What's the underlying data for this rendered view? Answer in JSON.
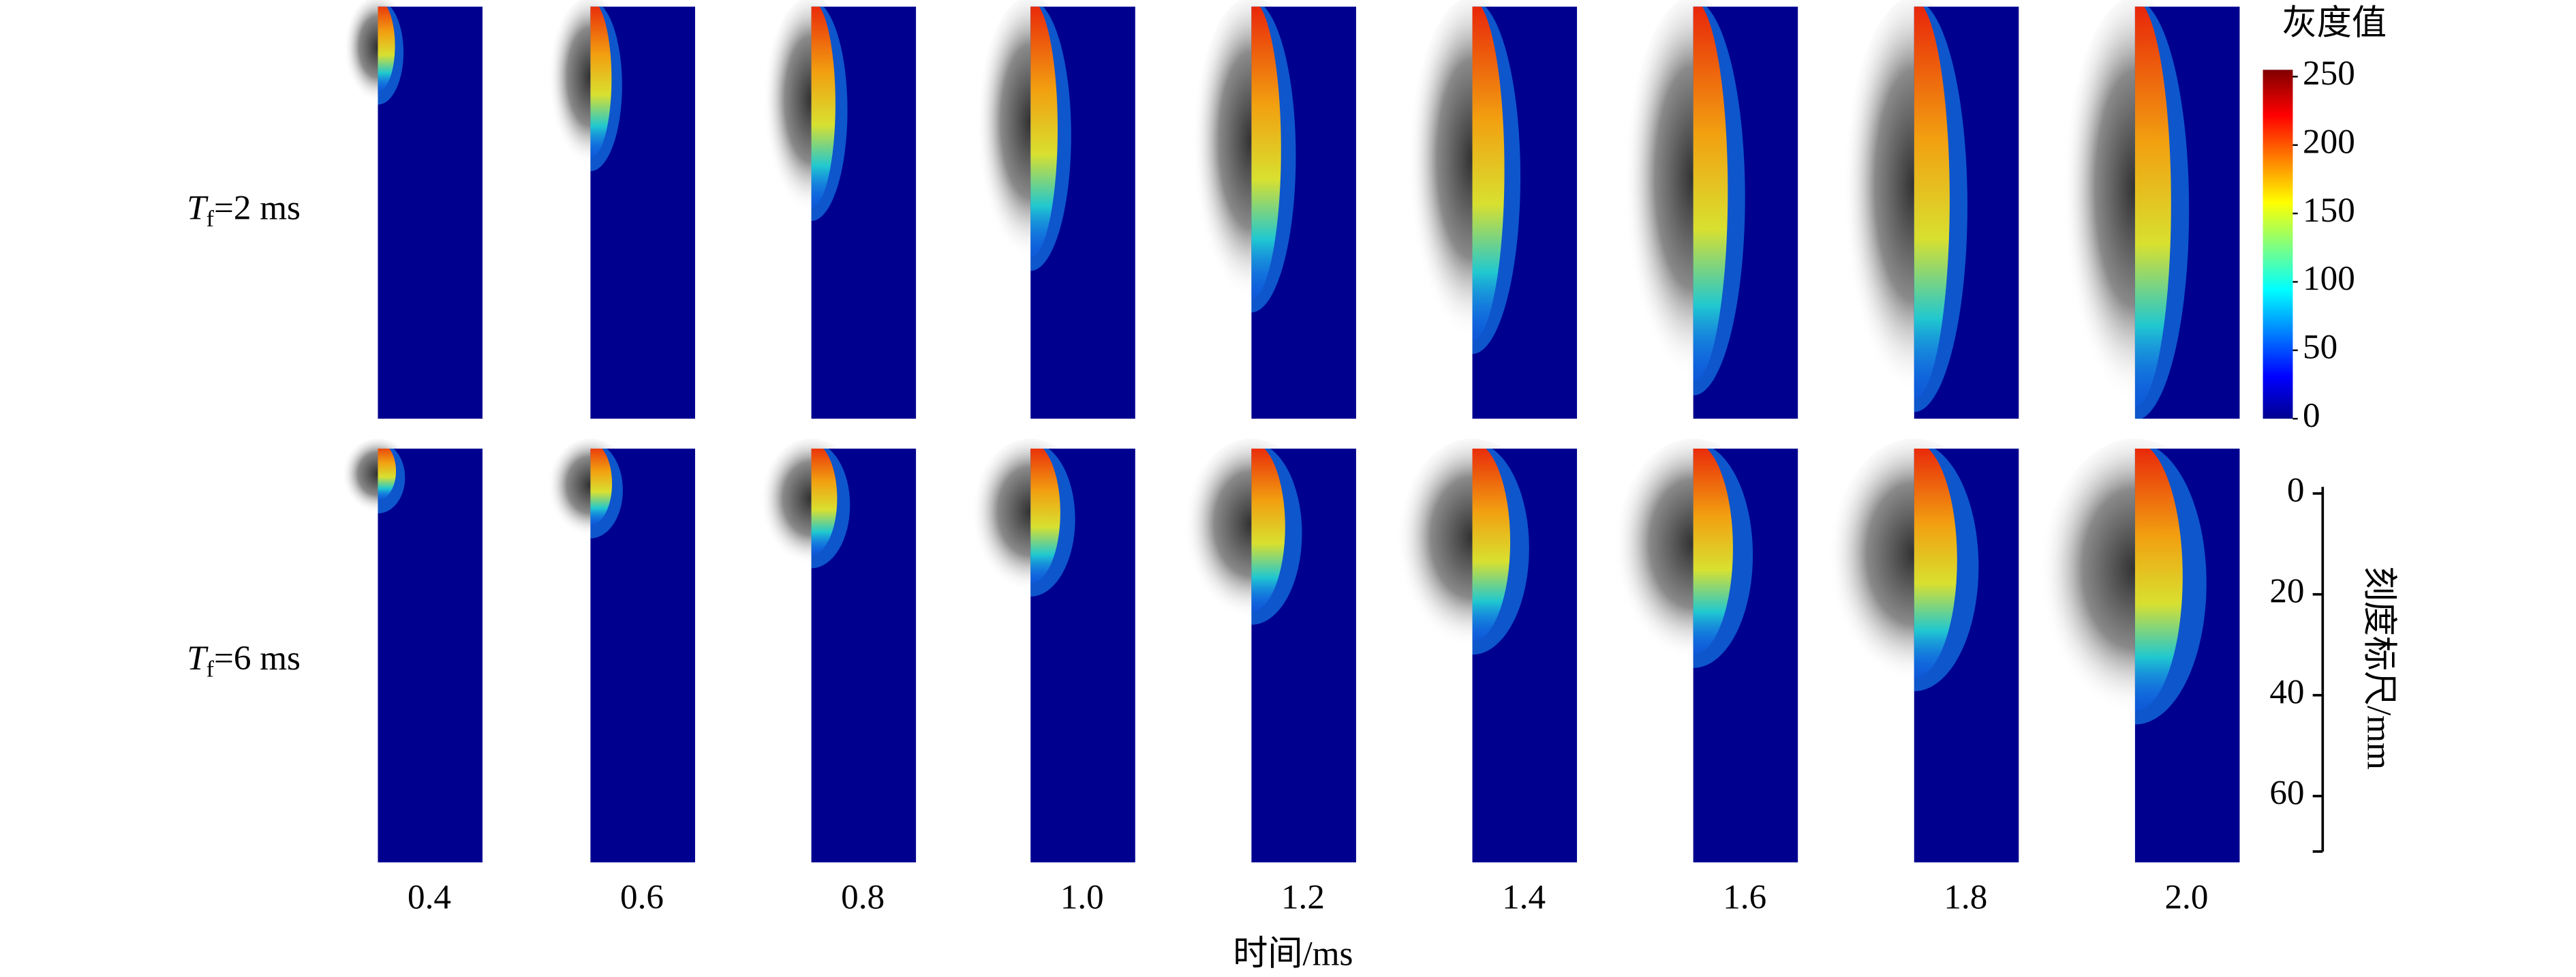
{
  "figure": {
    "row_labels": [
      {
        "symbol": "T",
        "subscript": "f",
        "text": "=2 ms"
      },
      {
        "symbol": "T",
        "subscript": "f",
        "text": "=6 ms"
      }
    ],
    "time_labels": [
      "0.4",
      "0.6",
      "0.8",
      "1.0",
      "1.2",
      "1.4",
      "1.6",
      "1.8",
      "2.0"
    ],
    "x_axis_title": "时间/ms",
    "colorbar": {
      "title": "灰度值",
      "lim": [
        0,
        255
      ],
      "ticks": [
        0,
        50,
        100,
        150,
        200,
        250
      ]
    },
    "scale_bar": {
      "title": "刻度标尺/mm",
      "lim": [
        0,
        71
      ],
      "ticks": [
        0,
        20,
        40,
        60
      ]
    }
  }
}
